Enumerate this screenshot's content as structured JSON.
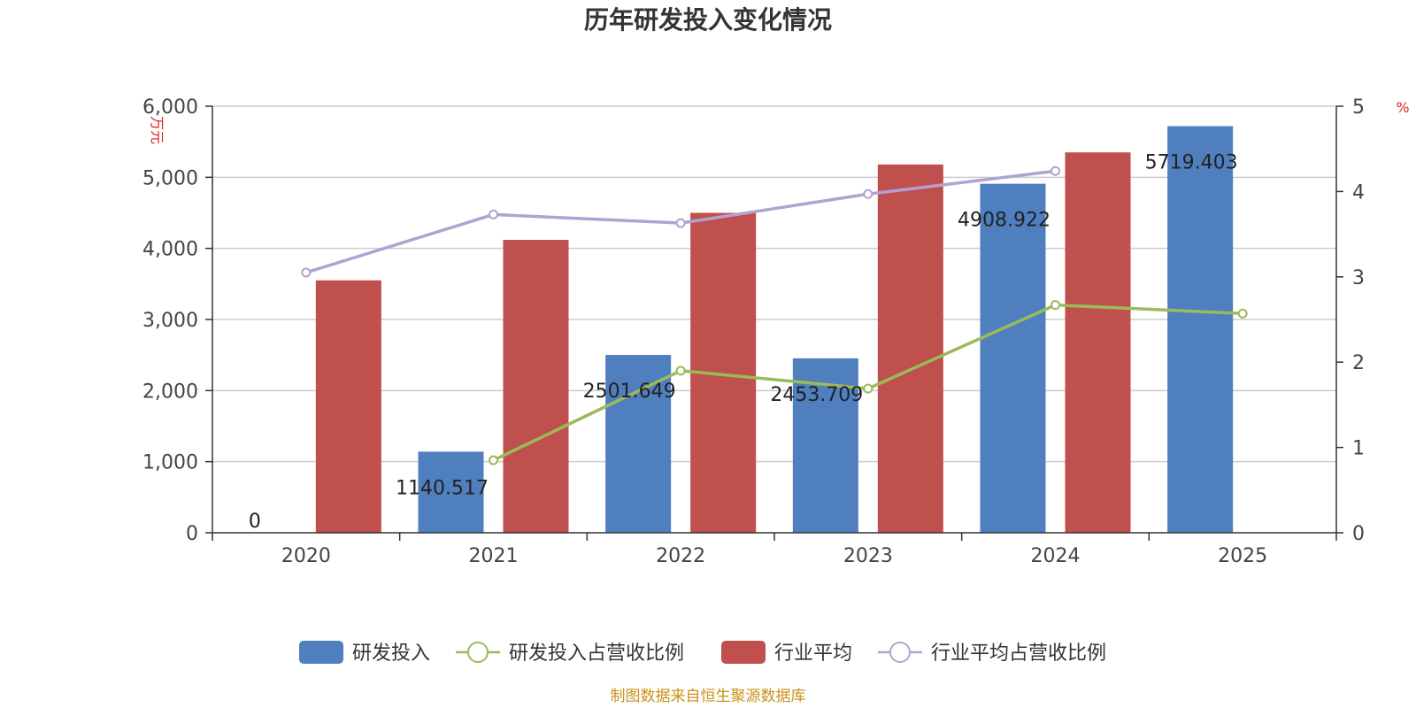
{
  "chart_data": {
    "type": "bar",
    "title": "历年研发投入变化情况",
    "categories": [
      "2020",
      "2021",
      "2022",
      "2023",
      "2024",
      "2025"
    ],
    "y_left": {
      "unit": "万元",
      "min": 0,
      "max": 6000,
      "ticks": [
        "0",
        "1,000",
        "2,000",
        "3,000",
        "4,000",
        "5,000",
        "6,000"
      ]
    },
    "y_right": {
      "unit": "%",
      "min": 0,
      "max": 5,
      "ticks": [
        "0",
        "1",
        "2",
        "3",
        "4",
        "5"
      ]
    },
    "grid": true,
    "legend_position": "bottom",
    "series": [
      {
        "name": "研发投入",
        "type": "bar",
        "axis": "left",
        "color": "#4f7fbe",
        "values": [
          0,
          1140.517,
          2501.649,
          2453.709,
          4908.922,
          5719.403
        ],
        "labels": [
          "0",
          "1140.517",
          "2501.649",
          "2453.709",
          "4908.922",
          "5719.403"
        ]
      },
      {
        "name": "研发投入占营收比例",
        "type": "line",
        "axis": "right",
        "color": "#9bbb59",
        "values": [
          null,
          0.85,
          1.9,
          1.69,
          2.67,
          2.57
        ]
      },
      {
        "name": "行业平均",
        "type": "bar",
        "axis": "left",
        "color": "#c0504d",
        "values": [
          3550,
          4120,
          4500,
          5180,
          5350,
          null
        ]
      },
      {
        "name": "行业平均占营收比例",
        "type": "line",
        "axis": "right",
        "color": "#b3a2cf",
        "values": [
          3.05,
          3.73,
          3.63,
          3.97,
          4.24,
          null
        ]
      }
    ]
  },
  "footer": {
    "source": "制图数据来自恒生聚源数据库"
  }
}
